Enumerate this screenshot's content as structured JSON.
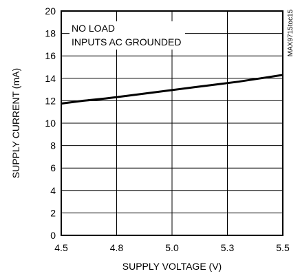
{
  "chart_data": {
    "type": "line",
    "title": "",
    "xlabel": "SUPPLY VOLTAGE (V)",
    "ylabel": "SUPPLY CURRENT (mA)",
    "xlim": [
      4.5,
      5.5
    ],
    "ylim": [
      0,
      20
    ],
    "x_ticks": [
      "4.5",
      "4.8",
      "5.0",
      "5.3",
      "5.5"
    ],
    "y_ticks": [
      "0",
      "2",
      "4",
      "6",
      "8",
      "10",
      "12",
      "14",
      "16",
      "18",
      "20"
    ],
    "grid": true,
    "annotations": [
      "NO LOAD",
      "INPUTS AC GROUNDED"
    ],
    "figure_id": "MAX9715toc15",
    "series": [
      {
        "x": [
          4.5,
          4.6,
          4.7,
          4.8,
          4.9,
          5.0,
          5.1,
          5.2,
          5.3,
          5.4,
          5.5
        ],
        "y": [
          11.75,
          12.0,
          12.2,
          12.45,
          12.7,
          12.95,
          13.2,
          13.45,
          13.7,
          14.0,
          14.3
        ]
      }
    ],
    "colors": {
      "line": "#000000",
      "grid": "#000000",
      "background": "#ffffff"
    }
  }
}
